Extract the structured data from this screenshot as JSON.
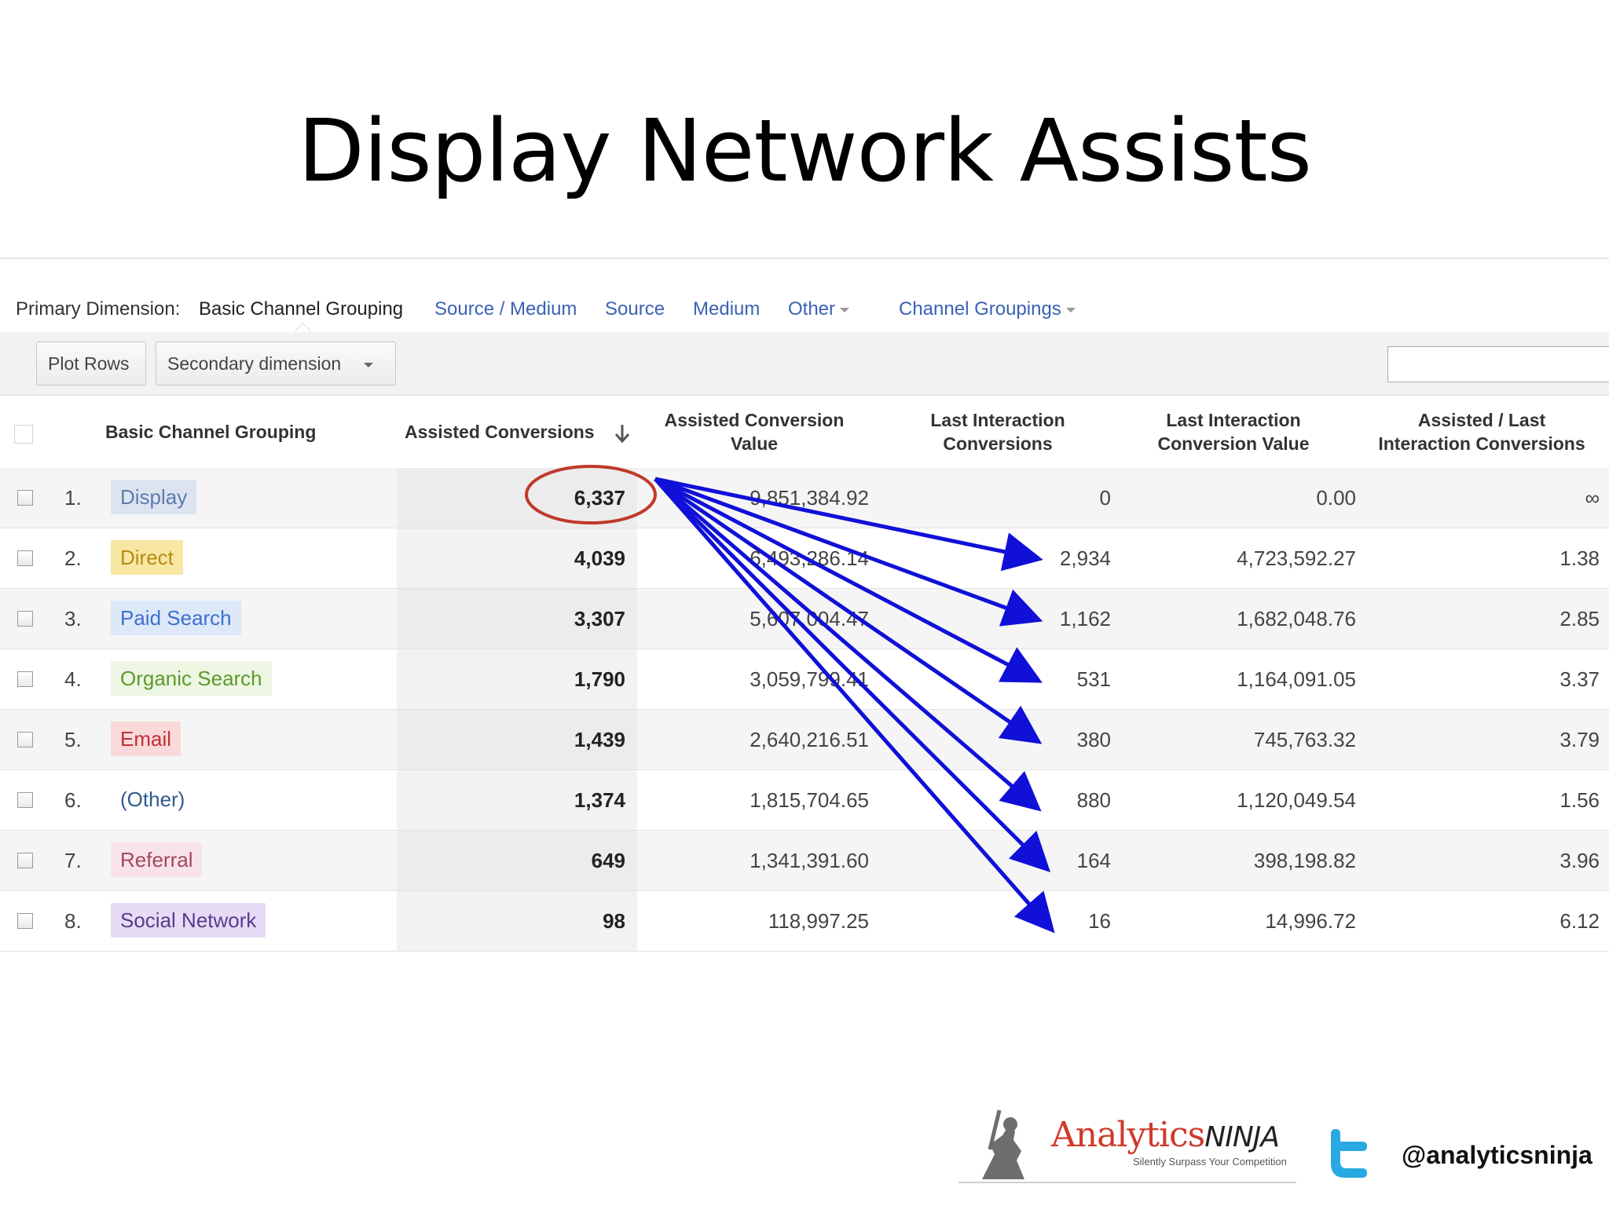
{
  "slide": {
    "title": "Display Network Assists"
  },
  "dimension_bar": {
    "label": "Primary Dimension:",
    "active": "Basic Channel Grouping",
    "links": [
      "Source / Medium",
      "Source",
      "Medium",
      "Other"
    ],
    "channel_groupings": "Channel Groupings"
  },
  "toolbar": {
    "plot_rows": "Plot Rows",
    "secondary_dimension": "Secondary dimension"
  },
  "table": {
    "headers": {
      "channel": "Basic Channel Grouping",
      "assisted_conversions": "Assisted Conversions",
      "assisted_value_1": "Assisted Conversion",
      "assisted_value_2": "Value",
      "last_conv_1": "Last Interaction",
      "last_conv_2": "Conversions",
      "last_value_1": "Last Interaction",
      "last_value_2": "Conversion Value",
      "ratio_1": "Assisted / Last",
      "ratio_2": "Interaction Conversions"
    },
    "rows": [
      {
        "index": "1.",
        "channel": "Display",
        "assisted": "6,337",
        "assisted_value": "9,851,384.92",
        "last": "0",
        "last_value": "0.00",
        "ratio": "∞",
        "tag_bg": "#dde4f0",
        "tag_fg": "#5b7cae"
      },
      {
        "index": "2.",
        "channel": "Direct",
        "assisted": "4,039",
        "assisted_value": "6,493,286.14",
        "last": "2,934",
        "last_value": "4,723,592.27",
        "ratio": "1.38",
        "tag_bg": "#f7e7a2",
        "tag_fg": "#b78a16"
      },
      {
        "index": "3.",
        "channel": "Paid Search",
        "assisted": "3,307",
        "assisted_value": "5,607,004.47",
        "last": "1,162",
        "last_value": "1,682,048.76",
        "ratio": "2.85",
        "tag_bg": "#dde8f8",
        "tag_fg": "#3d6fd1"
      },
      {
        "index": "4.",
        "channel": "Organic Search",
        "assisted": "1,790",
        "assisted_value": "3,059,799.41",
        "last": "531",
        "last_value": "1,164,091.05",
        "ratio": "3.37",
        "tag_bg": "#eef6e4",
        "tag_fg": "#5e9a2c"
      },
      {
        "index": "5.",
        "channel": "Email",
        "assisted": "1,439",
        "assisted_value": "2,640,216.51",
        "last": "380",
        "last_value": "745,763.32",
        "ratio": "3.79",
        "tag_bg": "#f9d9d9",
        "tag_fg": "#c0303a"
      },
      {
        "index": "6.",
        "channel": "(Other)",
        "assisted": "1,374",
        "assisted_value": "1,815,704.65",
        "last": "880",
        "last_value": "1,120,049.54",
        "ratio": "1.56",
        "tag_bg": "transparent",
        "tag_fg": "#2f5a8e"
      },
      {
        "index": "7.",
        "channel": "Referral",
        "assisted": "649",
        "assisted_value": "1,341,391.60",
        "last": "164",
        "last_value": "398,198.82",
        "ratio": "3.96",
        "tag_bg": "#f9e3ea",
        "tag_fg": "#a2485f"
      },
      {
        "index": "8.",
        "channel": "Social Network",
        "assisted": "98",
        "assisted_value": "118,997.25",
        "last": "16",
        "last_value": "14,996.72",
        "ratio": "6.12",
        "tag_bg": "#e6dcf5",
        "tag_fg": "#5b3a8e"
      }
    ]
  },
  "annotation": {
    "circle_color": "#c0392b",
    "arrow_color": "#1010d8"
  },
  "footer": {
    "logo_word_1": "Analytics",
    "logo_word_2": "NINJA",
    "logo_tagline": "Silently Surpass Your Competition",
    "twitter_handle": "@analyticsninja",
    "twitter_color": "#29a9e1"
  }
}
